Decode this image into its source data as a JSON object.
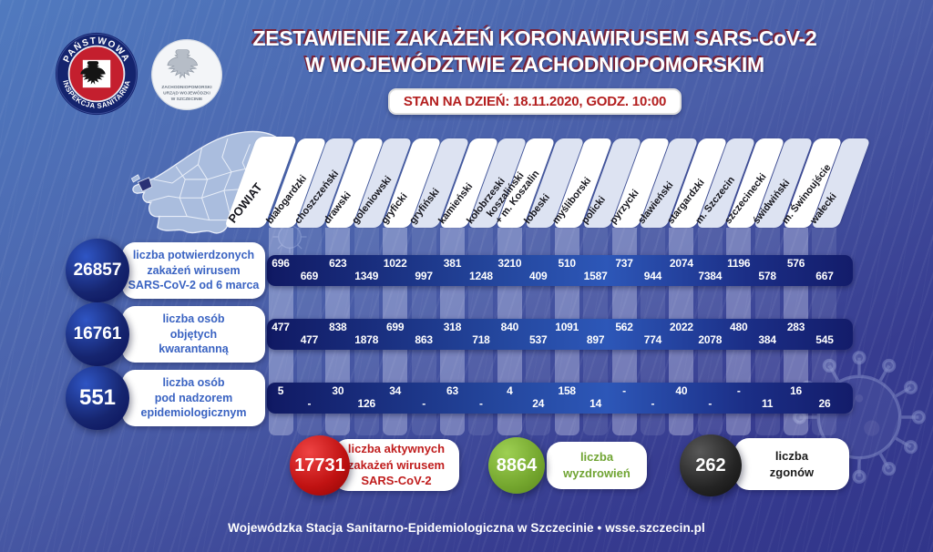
{
  "header": {
    "logo_sanitary": {
      "arc_top": "PAŃSTWOWA",
      "arc_bottom": "INSPEKCJA SANITARNA"
    },
    "logo_voivodeship": {
      "line1": "ZACHODNIOPOMORSKI",
      "line2": "URZĄD WOJEWÓDZKI",
      "line3": "W SZCZECINIE"
    },
    "title_line1": "ZESTAWIENIE ZAKAŻEŃ KORONAWIRUSEM SARS-CoV-2",
    "title_line2": "W WOJEWÓDZTWIE ZACHODNIOPOMORSKIM",
    "status_badge": "STAN NA DZIEŃ: 18.11.2020, GODZ. 10:00"
  },
  "table": {
    "corner_label": "POWIAT",
    "columns": [
      "białogardzki",
      "choszczeński",
      "drawski",
      "goleniowski",
      "gryficki",
      "gryfiński",
      "kamieński",
      "kołobrzeski",
      "koszaliński\n+ m. Koszalin",
      "łobeski",
      "myśliborski",
      "policki",
      "pyrzycki",
      "sławieński",
      "stargardzki",
      "m. Szczecin",
      "szczecinecki",
      "świdwiński",
      "m. Świnoujście",
      "wałecki"
    ],
    "rows": [
      {
        "total": "26857",
        "label": "liczba potwierdzonych\nzakażeń wirusem\nSARS-CoV-2 od 6 marca",
        "values": [
          "696",
          "669",
          "623",
          "1349",
          "1022",
          "997",
          "381",
          "1248",
          "3210",
          "409",
          "510",
          "1587",
          "737",
          "944",
          "2074",
          "7384",
          "1196",
          "578",
          "576",
          "667"
        ]
      },
      {
        "total": "16761",
        "label": "liczba osób\nobjętych\nkwarantanną",
        "values": [
          "477",
          "477",
          "838",
          "1878",
          "699",
          "863",
          "318",
          "718",
          "840",
          "537",
          "1091",
          "897",
          "562",
          "774",
          "2022",
          "2078",
          "480",
          "384",
          "283",
          "545"
        ]
      },
      {
        "total": "551",
        "label": "liczba osób\npod nadzorem\nepidemiologicznym",
        "values": [
          "5",
          "-",
          "30",
          "126",
          "34",
          "-",
          "63",
          "-",
          "4",
          "24",
          "158",
          "14",
          "-",
          "-",
          "40",
          "-",
          "-",
          "11",
          "16",
          "26"
        ]
      }
    ]
  },
  "summary": [
    {
      "value": "17731",
      "label": "liczba aktywnych\nzakażeń wirusem\nSARS-CoV-2",
      "color": "#c01212"
    },
    {
      "value": "8864",
      "label": "liczba\nwyzdrowień",
      "color": "#74a62e"
    },
    {
      "value": "262",
      "label": "liczba\nzgonów",
      "color": "#1b1b1b"
    }
  ],
  "footer": "Wojewódzka Stacja Sanitarno-Epidemiologiczna w Szczecinie • wsse.szczecin.pl",
  "colors": {
    "accent_red": "#c01212",
    "accent_green": "#74a62e",
    "accent_dark": "#1b1b1b",
    "bar_navy": "#1a2478",
    "label_blue": "#3a63c2",
    "badge_red": "#b31e1e"
  },
  "chart_data": {
    "type": "table",
    "title": "ZESTAWIENIE ZAKAŻEŃ KORONAWIRUSEM SARS-CoV-2 W WOJEWÓDZTWIE ZACHODNIOPOMORSKIM",
    "subtitle": "STAN NA DZIEŃ: 18.11.2020, GODZ. 10:00",
    "categories": [
      "białogardzki",
      "choszczeński",
      "drawski",
      "goleniowski",
      "gryficki",
      "gryfiński",
      "kamieński",
      "kołobrzeski",
      "koszaliński + m. Koszalin",
      "łobeski",
      "myśliborski",
      "policki",
      "pyrzycki",
      "sławieński",
      "stargardzki",
      "m. Szczecin",
      "szczecinecki",
      "świdwiński",
      "m. Świnoujście",
      "wałecki"
    ],
    "series": [
      {
        "name": "liczba potwierdzonych zakażeń wirusem SARS-CoV-2 od 6 marca",
        "total": 26857,
        "values": [
          696,
          669,
          623,
          1349,
          1022,
          997,
          381,
          1248,
          3210,
          409,
          510,
          1587,
          737,
          944,
          2074,
          7384,
          1196,
          578,
          576,
          667
        ]
      },
      {
        "name": "liczba osób objętych kwarantanną",
        "total": 16761,
        "values": [
          477,
          477,
          838,
          1878,
          699,
          863,
          318,
          718,
          840,
          537,
          1091,
          897,
          562,
          774,
          2022,
          2078,
          480,
          384,
          283,
          545
        ]
      },
      {
        "name": "liczba osób pod nadzorem epidemiologicznym",
        "total": 551,
        "values": [
          5,
          null,
          30,
          126,
          34,
          null,
          63,
          null,
          4,
          24,
          158,
          14,
          null,
          null,
          40,
          null,
          null,
          11,
          16,
          26
        ]
      }
    ],
    "summary": [
      {
        "name": "liczba aktywnych zakażeń wirusem SARS-CoV-2",
        "value": 17731
      },
      {
        "name": "liczba wyzdrowień",
        "value": 8864
      },
      {
        "name": "liczba zgonów",
        "value": 262
      }
    ]
  }
}
